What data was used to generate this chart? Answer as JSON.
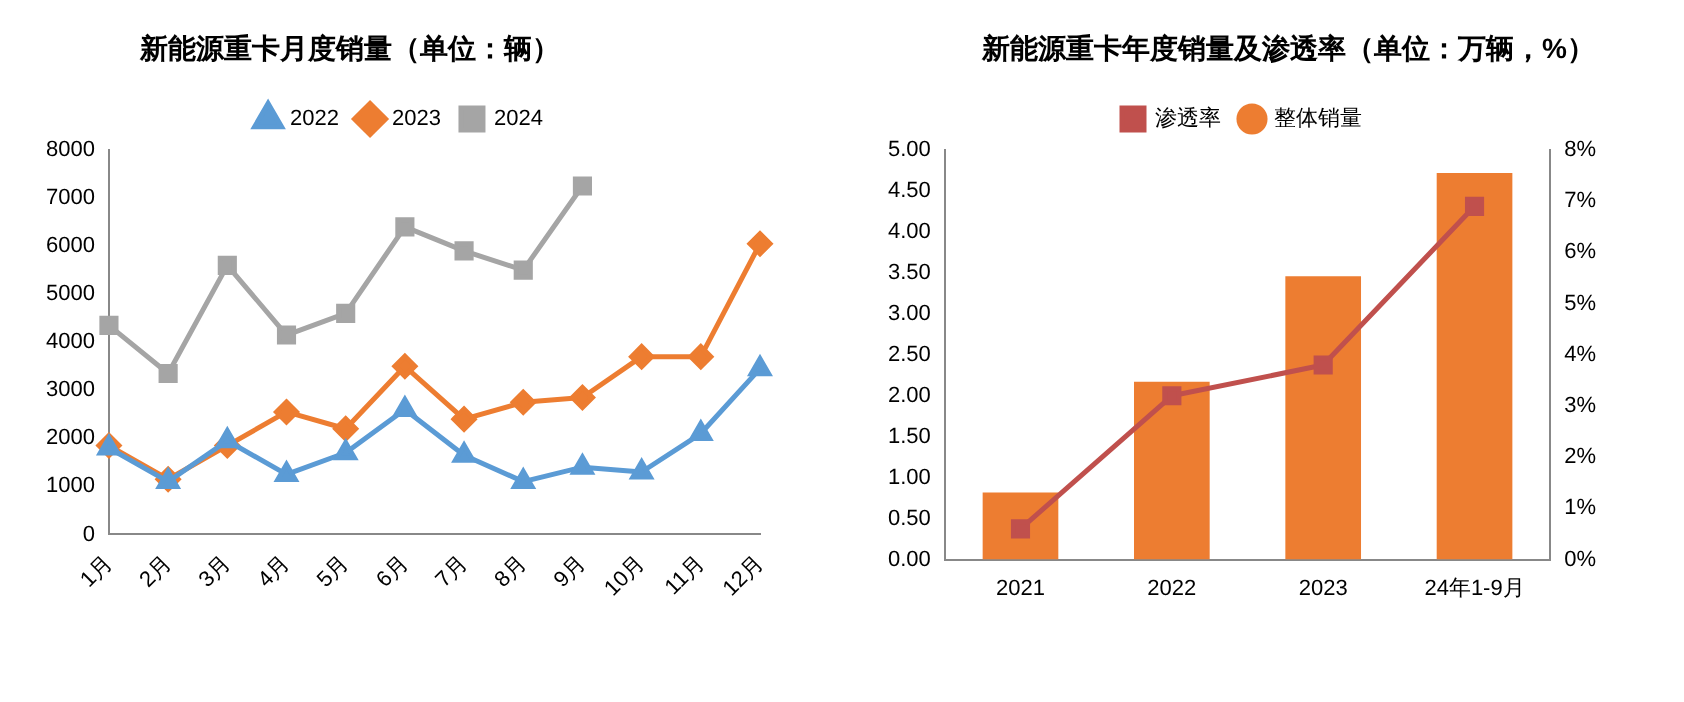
{
  "chart_data": [
    {
      "type": "line",
      "title": "新能源重卡月度销量（单位：辆）",
      "categories": [
        "1月",
        "2月",
        "3月",
        "4月",
        "5月",
        "6月",
        "7月",
        "8月",
        "9月",
        "10月",
        "11月",
        "12月"
      ],
      "series": [
        {
          "name": "2022",
          "color": "#5b9bd5",
          "marker": "triangle",
          "values": [
            1800,
            1100,
            1950,
            1250,
            1700,
            2600,
            1650,
            1100,
            1400,
            1300,
            2100,
            3450
          ]
        },
        {
          "name": "2023",
          "color": "#ed7d31",
          "marker": "diamond",
          "values": [
            1850,
            1150,
            1850,
            2550,
            2200,
            3500,
            2400,
            2750,
            2850,
            3700,
            3700,
            6050
          ]
        },
        {
          "name": "2024",
          "color": "#a5a5a5",
          "marker": "square",
          "values": [
            4350,
            3350,
            5600,
            4150,
            4600,
            6400,
            5900,
            5500,
            7250,
            null,
            null,
            null
          ]
        }
      ],
      "ylim": [
        0,
        8000
      ],
      "yticks": [
        0,
        1000,
        2000,
        3000,
        4000,
        5000,
        6000,
        7000,
        8000
      ],
      "grid": false,
      "legend": "top"
    },
    {
      "type": "bar",
      "title": "新能源重卡年度销量及渗透率（单位：万辆，%）",
      "categories": [
        "2021",
        "2022",
        "2023",
        "24年1-9月"
      ],
      "series": [
        {
          "name": "整体销量",
          "type": "bar",
          "color": "#ed7d31",
          "values": [
            0.82,
            2.17,
            3.46,
            4.72
          ]
        },
        {
          "name": "渗透率",
          "type": "line",
          "axis": "y2",
          "color": "#c0504d",
          "marker": "square",
          "values": [
            0.6,
            3.2,
            3.8,
            6.9
          ]
        }
      ],
      "ylim": [
        0,
        5
      ],
      "yticks": [
        {
          "value": 0,
          "label": "0.00"
        },
        {
          "value": 0.5,
          "label": "0.50"
        },
        {
          "value": 1,
          "label": "1.00"
        },
        {
          "value": 1.5,
          "label": "1.50"
        },
        {
          "value": 2,
          "label": "2.00"
        },
        {
          "value": 2.5,
          "label": "2.50"
        },
        {
          "value": 3,
          "label": "3.00"
        },
        {
          "value": 3.5,
          "label": "3.50"
        },
        {
          "value": 4,
          "label": "4.00"
        },
        {
          "value": 4.5,
          "label": "4.50"
        },
        {
          "value": 5,
          "label": "5.00"
        }
      ],
      "y2lim": [
        0,
        8
      ],
      "y2ticks": [
        {
          "value": 0,
          "label": "0%"
        },
        {
          "value": 1,
          "label": "1%"
        },
        {
          "value": 2,
          "label": "2%"
        },
        {
          "value": 3,
          "label": "3%"
        },
        {
          "value": 4,
          "label": "4%"
        },
        {
          "value": 5,
          "label": "5%"
        },
        {
          "value": 6,
          "label": "6%"
        },
        {
          "value": 7,
          "label": "7%"
        },
        {
          "value": 8,
          "label": "8%"
        }
      ],
      "grid": false,
      "legend": "top"
    }
  ]
}
